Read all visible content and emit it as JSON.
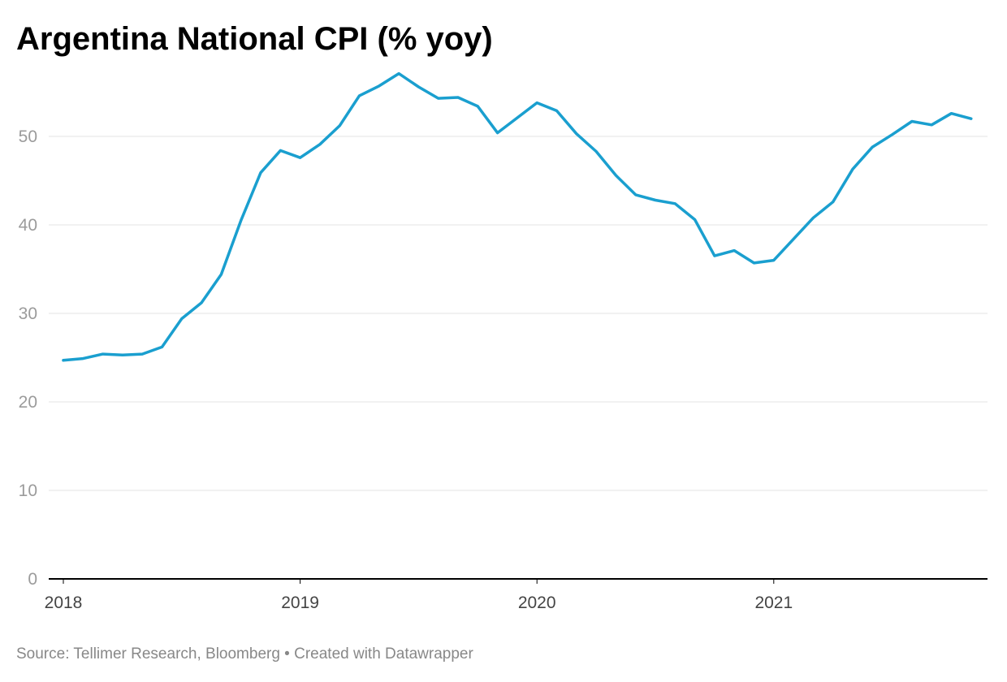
{
  "chart_data": {
    "type": "line",
    "title": "Argentina National CPI (% yoy)",
    "xlabel": "",
    "ylabel": "",
    "source": "Source: Tellimer Research, Bloomberg • Created with Datawrapper",
    "ylim": [
      0,
      57
    ],
    "y_ticks": [
      "0",
      "10",
      "20",
      "30",
      "40",
      "50"
    ],
    "x_ticks": [
      "2018",
      "2019",
      "2020",
      "2021"
    ],
    "grid": true,
    "line_color": "#1a9fcf",
    "series": [
      {
        "x": [
          "2018-01",
          "2018-02",
          "2018-03",
          "2018-04",
          "2018-05",
          "2018-06",
          "2018-07",
          "2018-08",
          "2018-09",
          "2018-10",
          "2018-11",
          "2018-12",
          "2019-01",
          "2019-02",
          "2019-03",
          "2019-04",
          "2019-05",
          "2019-06",
          "2019-07",
          "2019-08",
          "2019-09",
          "2019-10",
          "2019-11",
          "2019-12",
          "2020-01",
          "2020-02",
          "2020-03",
          "2020-04",
          "2020-05",
          "2020-06",
          "2020-07",
          "2020-08",
          "2020-09",
          "2020-10",
          "2020-11",
          "2020-12",
          "2021-01",
          "2021-02",
          "2021-03",
          "2021-04",
          "2021-05",
          "2021-06",
          "2021-07",
          "2021-08",
          "2021-09",
          "2021-10",
          "2021-11"
        ],
        "values": [
          24.7,
          24.9,
          25.4,
          25.3,
          25.4,
          26.2,
          29.4,
          31.2,
          34.4,
          40.5,
          45.9,
          48.4,
          47.6,
          49.1,
          51.2,
          54.6,
          55.7,
          57.1,
          55.6,
          54.3,
          54.4,
          53.4,
          50.4,
          52.1,
          53.8,
          52.9,
          50.3,
          48.3,
          45.6,
          43.4,
          42.8,
          42.4,
          40.6,
          36.5,
          37.1,
          35.7,
          36.0,
          38.4,
          40.8,
          42.6,
          46.3,
          48.8,
          50.2,
          51.7,
          51.3,
          52.6,
          52.0
        ]
      }
    ]
  }
}
